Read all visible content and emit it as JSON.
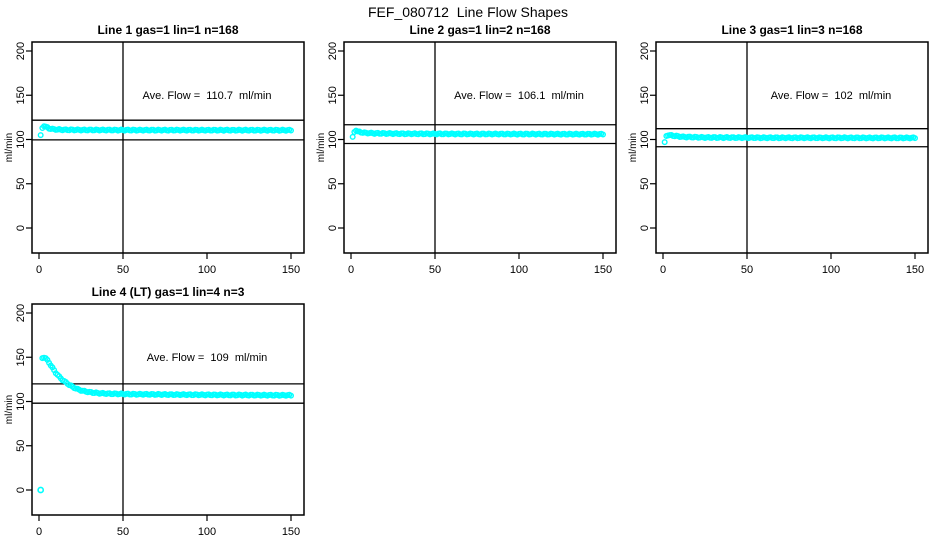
{
  "header": {
    "title": "FEF_080712  Line Flow Shapes"
  },
  "style": {
    "background": "#ffffff",
    "axis_color": "#000000",
    "point_color": "#00FFFF"
  },
  "chart_data": [
    {
      "type": "scatter",
      "title": "Line 1 gas=1 lin=1 n=168",
      "annotation": "Ave. Flow =  110.7  ml/min",
      "ave_flow": 110.7,
      "n": 168,
      "ylabel": "ml/min",
      "xlabel": "",
      "xlim": [
        0,
        150
      ],
      "ylim": [
        0,
        200
      ],
      "xticks": [
        0,
        50,
        100,
        150
      ],
      "yticks": [
        0,
        50,
        100,
        150,
        200
      ],
      "grid": false,
      "vline_x": 50,
      "hlines": [
        99.6,
        121.8
      ],
      "marker": "open-circle",
      "color": "#00FFFF",
      "series_keypoints": [
        [
          1,
          105
        ],
        [
          2,
          113
        ],
        [
          3,
          115
        ],
        [
          4,
          114.5
        ],
        [
          6,
          112.5
        ],
        [
          9,
          111.5
        ],
        [
          14,
          111
        ],
        [
          25,
          110.8
        ],
        [
          60,
          110.6
        ],
        [
          150,
          110.5
        ]
      ],
      "outlier_points": []
    },
    {
      "type": "scatter",
      "title": "Line 2 gas=1 lin=2 n=168",
      "annotation": "Ave. Flow =  106.1  ml/min",
      "ave_flow": 106.1,
      "n": 168,
      "ylabel": "ml/min",
      "xlabel": "",
      "xlim": [
        0,
        150
      ],
      "ylim": [
        0,
        200
      ],
      "xticks": [
        0,
        50,
        100,
        150
      ],
      "yticks": [
        0,
        50,
        100,
        150,
        200
      ],
      "grid": false,
      "vline_x": 50,
      "hlines": [
        95.5,
        116.7
      ],
      "marker": "open-circle",
      "color": "#00FFFF",
      "series_keypoints": [
        [
          1,
          103
        ],
        [
          2,
          108.5
        ],
        [
          3,
          110
        ],
        [
          5,
          108.5
        ],
        [
          8,
          107.5
        ],
        [
          14,
          107
        ],
        [
          30,
          106.5
        ],
        [
          80,
          106.2
        ],
        [
          150,
          106
        ]
      ],
      "outlier_points": []
    },
    {
      "type": "scatter",
      "title": "Line 3 gas=1 lin=3 n=168",
      "annotation": "Ave. Flow =  102  ml/min",
      "ave_flow": 102,
      "n": 168,
      "ylabel": "ml/min",
      "xlabel": "",
      "xlim": [
        0,
        150
      ],
      "ylim": [
        0,
        200
      ],
      "xticks": [
        0,
        50,
        100,
        150
      ],
      "yticks": [
        0,
        50,
        100,
        150,
        200
      ],
      "grid": false,
      "vline_x": 50,
      "hlines": [
        91.8,
        112.2
      ],
      "marker": "open-circle",
      "color": "#00FFFF",
      "series_keypoints": [
        [
          1,
          97
        ],
        [
          2,
          104
        ],
        [
          4,
          105
        ],
        [
          7,
          104
        ],
        [
          12,
          103
        ],
        [
          25,
          102.3
        ],
        [
          60,
          102
        ],
        [
          150,
          101.8
        ]
      ],
      "outlier_points": []
    },
    {
      "type": "scatter",
      "title": "Line 4 (LT) gas=1 lin=4 n=3",
      "annotation": "Ave. Flow =  109  ml/min",
      "ave_flow": 109,
      "n": 3,
      "ylabel": "ml/min",
      "xlabel": "",
      "xlim": [
        0,
        150
      ],
      "ylim": [
        0,
        200
      ],
      "xticks": [
        0,
        50,
        100,
        150
      ],
      "yticks": [
        0,
        50,
        100,
        150,
        200
      ],
      "grid": false,
      "vline_x": 50,
      "hlines": [
        98.1,
        119.9
      ],
      "marker": "open-circle",
      "color": "#00FFFF",
      "series_keypoints": [
        [
          2,
          149
        ],
        [
          3,
          149.5
        ],
        [
          4,
          149
        ],
        [
          5,
          147
        ],
        [
          6,
          144
        ],
        [
          8,
          138
        ],
        [
          10,
          132.5
        ],
        [
          12,
          128
        ],
        [
          14,
          124.5
        ],
        [
          16,
          121.5
        ],
        [
          18,
          119
        ],
        [
          20,
          116.5
        ],
        [
          23,
          113.8
        ],
        [
          26,
          112
        ],
        [
          30,
          110.5
        ],
        [
          35,
          109.5
        ],
        [
          42,
          108.8
        ],
        [
          55,
          108.3
        ],
        [
          80,
          107.8
        ],
        [
          120,
          107.3
        ],
        [
          150,
          107
        ]
      ],
      "outlier_points": [
        [
          1,
          0
        ]
      ]
    }
  ]
}
